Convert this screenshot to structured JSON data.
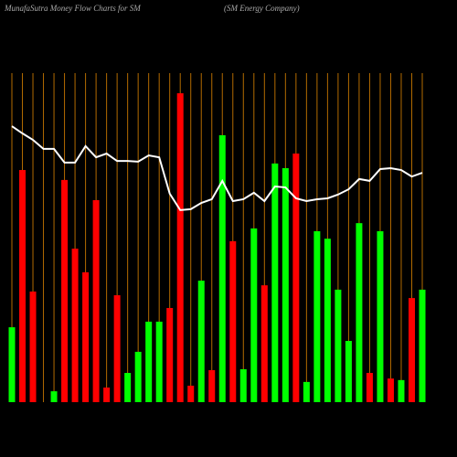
{
  "chart_data": {
    "type": "bar",
    "title": "MunafaSutra  Money Flow  Charts for SM",
    "subtitle": "(SM Energy Company)",
    "categories": [
      null,
      null,
      null,
      null,
      null,
      null,
      null,
      null,
      null,
      null,
      null,
      null,
      null,
      null,
      null,
      null,
      null,
      null,
      null,
      null,
      null,
      null,
      null,
      null,
      null,
      null,
      null,
      null,
      null,
      null,
      null,
      null,
      null,
      null,
      null,
      null,
      null,
      null,
      null,
      null
    ],
    "ylim": [
      0,
      100
    ],
    "series": [
      {
        "values": [
          24.1,
          74.7,
          35.6,
          0,
          3.5,
          71.5,
          49.4,
          41.8,
          65,
          4.7,
          34.4,
          9.4,
          16.2,
          25.9,
          25.9,
          30.3,
          99.4,
          5.3,
          39.1,
          10.3,
          85.9,
          51.8,
          10.6,
          55.9,
          37.6,
          76.8,
          75.3,
          80,
          6.5,
          55,
          52.6,
          36.2,
          19.7,
          57.6,
          9.4,
          55,
          7.6,
          7.1,
          33.5,
          36.2
        ],
        "colors": [
          "#00ff00",
          "#ff0000",
          "#ff0000",
          "#ff0000",
          "#00ff00",
          "#ff0000",
          "#ff0000",
          "#ff0000",
          "#ff0000",
          "#ff0000",
          "#ff0000",
          "#00ff00",
          "#00ff00",
          "#00ff00",
          "#00ff00",
          "#ff0000",
          "#ff0000",
          "#ff0000",
          "#00ff00",
          "#ff0000",
          "#00ff00",
          "#ff0000",
          "#00ff00",
          "#00ff00",
          "#ff0000",
          "#00ff00",
          "#00ff00",
          "#ff0000",
          "#00ff00",
          "#00ff00",
          "#00ff00",
          "#00ff00",
          "#00ff00",
          "#00ff00",
          "#ff0000",
          "#00ff00",
          "#ff0000",
          "#00ff00",
          "#ff0000",
          "#00ff00"
        ]
      },
      {
        "type": "line",
        "color": "#ffffff",
        "values": [
          88.8,
          86.5,
          84.4,
          81.5,
          81.5,
          77.1,
          77.1,
          82.4,
          78.8,
          80,
          77.6,
          77.6,
          77.4,
          79.4,
          78.8,
          67.1,
          61.8,
          62.1,
          64.1,
          65.3,
          71.2,
          64.7,
          65.3,
          67.4,
          64.7,
          69.4,
          69.1,
          65.6,
          64.7,
          65.3,
          65.6,
          66.8,
          68.5,
          71.8,
          71.2,
          75,
          75.3,
          74.7,
          72.6,
          73.8
        ]
      }
    ]
  }
}
